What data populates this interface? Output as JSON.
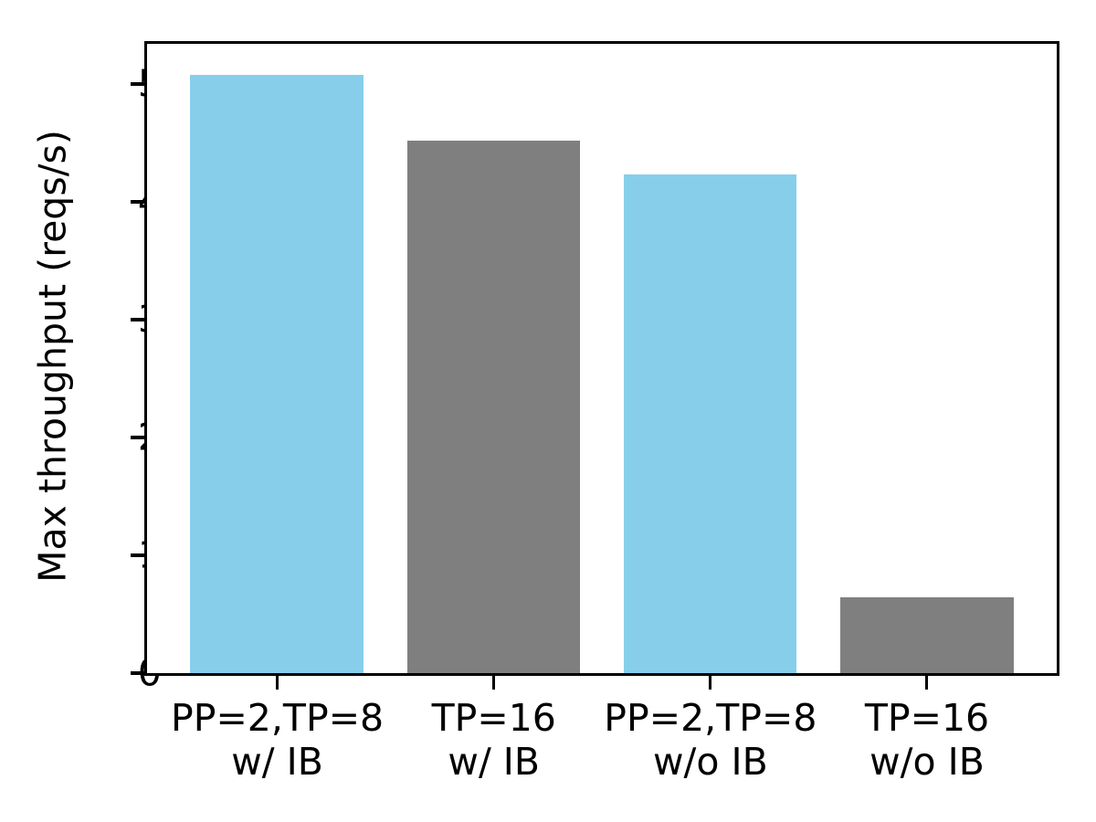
{
  "chart_data": {
    "type": "bar",
    "title": "",
    "ylabel": "Max throughput (reqs/s)",
    "xlabel": "",
    "categories": [
      "PP=2,TP=8\nw/ IB",
      "TP=16\nw/ IB",
      "PP=2,TP=8\nw/o IB",
      "TP=16\nw/o IB"
    ],
    "values": [
      5.08,
      4.52,
      4.23,
      0.64
    ],
    "bar_colors": [
      "#87CEEB",
      "#7F7F7F",
      "#87CEEB",
      "#7F7F7F"
    ],
    "yticks": [
      0,
      1,
      2,
      3,
      4,
      5
    ],
    "ylim": [
      0,
      5.34
    ],
    "xlim": [
      -0.6,
      3.6
    ],
    "bar_width": 0.8,
    "grid": false,
    "axis_color": "#000000",
    "background": "#FFFFFF"
  }
}
